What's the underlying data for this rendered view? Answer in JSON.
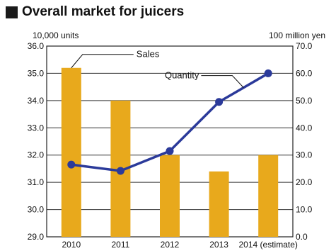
{
  "chart_data": {
    "type": "bar",
    "title": "Overall market for juicers",
    "categories": [
      "2010",
      "2011",
      "2012",
      "2013",
      "2014 (estimate)"
    ],
    "left_axis": {
      "unit": "10,000 units",
      "range": [
        29.0,
        36.0
      ],
      "ticks": [
        "29.0",
        "30.0",
        "31.0",
        "32.0",
        "33.0",
        "34.0",
        "35.0",
        "36.0"
      ]
    },
    "right_axis": {
      "unit": "100 million yen",
      "range": [
        0.0,
        70.0
      ],
      "ticks": [
        "0.0",
        "10.0",
        "20.0",
        "30.0",
        "40.0",
        "50.0",
        "60.0",
        "70.0"
      ]
    },
    "series": [
      {
        "name": "Sales",
        "type": "bar",
        "axis": "right",
        "color": "#e8a91c",
        "values": [
          62.0,
          50.0,
          30.0,
          24.0,
          30.0
        ]
      },
      {
        "name": "Quantity",
        "type": "line",
        "axis": "left",
        "color": "#2b3a9a",
        "values": [
          31.65,
          31.42,
          32.15,
          33.95,
          35.0
        ]
      }
    ],
    "grid": true
  }
}
